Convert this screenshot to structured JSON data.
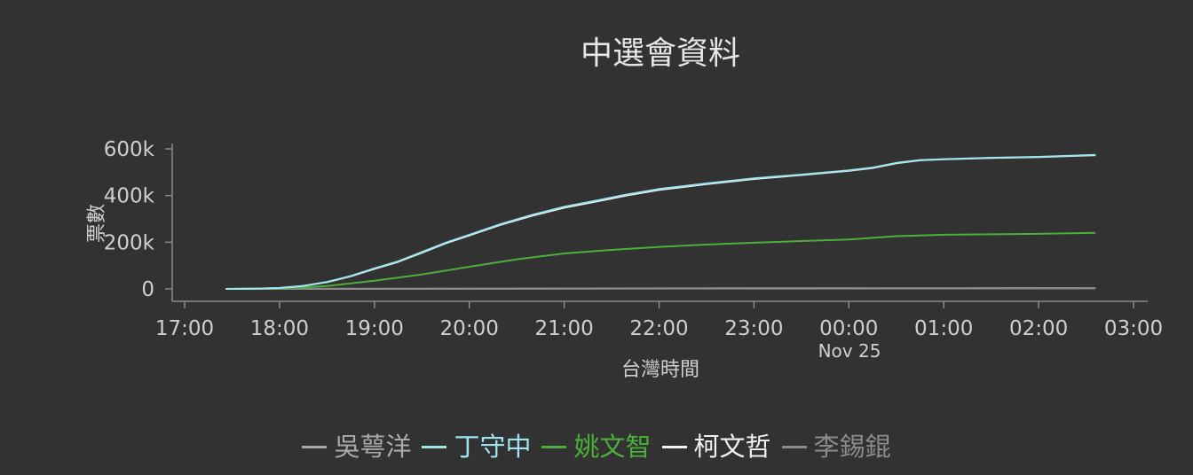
{
  "chart_data": {
    "type": "line",
    "title": "中選會資料",
    "xlabel": "台灣時間",
    "ylabel": "票數",
    "x_ticks": [
      "17:00",
      "18:00",
      "19:00",
      "20:00",
      "21:00",
      "22:00",
      "23:00",
      "00:00",
      "01:00",
      "02:00",
      "03:00"
    ],
    "x_date_label": "Nov 25",
    "y_ticks": [
      "0",
      "200k",
      "400k",
      "600k"
    ],
    "ylim": [
      0,
      620000
    ],
    "xlim": [
      "17:00",
      "03:00"
    ],
    "grid": false,
    "legend_position": "bottom",
    "series": [
      {
        "name": "吳萼洋",
        "color": "#aaaaaa",
        "points": [
          [
            "17:26",
            0
          ],
          [
            "19:00",
            500
          ],
          [
            "21:00",
            1500
          ],
          [
            "23:00",
            2500
          ],
          [
            "01:00",
            3200
          ],
          [
            "02:36",
            3500
          ]
        ]
      },
      {
        "name": "丁守中",
        "color": "#9ee4f0",
        "points": [
          [
            "17:26",
            0
          ],
          [
            "17:45",
            1000
          ],
          [
            "18:00",
            4000
          ],
          [
            "18:15",
            13000
          ],
          [
            "18:30",
            30000
          ],
          [
            "18:45",
            55000
          ],
          [
            "19:00",
            88000
          ],
          [
            "19:15",
            118000
          ],
          [
            "19:30",
            158000
          ],
          [
            "19:45",
            198000
          ],
          [
            "20:00",
            232000
          ],
          [
            "20:20",
            278000
          ],
          [
            "20:40",
            318000
          ],
          [
            "21:00",
            352000
          ],
          [
            "21:20",
            378000
          ],
          [
            "21:40",
            405000
          ],
          [
            "22:00",
            428000
          ],
          [
            "22:30",
            452000
          ],
          [
            "23:00",
            474000
          ],
          [
            "23:30",
            490000
          ],
          [
            "00:00",
            508000
          ],
          [
            "00:15",
            520000
          ],
          [
            "00:30",
            540000
          ],
          [
            "00:45",
            552000
          ],
          [
            "01:00",
            556000
          ],
          [
            "01:30",
            562000
          ],
          [
            "02:00",
            566000
          ],
          [
            "02:36",
            574000
          ]
        ]
      },
      {
        "name": "姚文智",
        "color": "#4caf3a",
        "points": [
          [
            "17:26",
            0
          ],
          [
            "18:00",
            1500
          ],
          [
            "18:30",
            12000
          ],
          [
            "19:00",
            35000
          ],
          [
            "19:30",
            62000
          ],
          [
            "20:00",
            95000
          ],
          [
            "20:30",
            127000
          ],
          [
            "21:00",
            152000
          ],
          [
            "21:30",
            167000
          ],
          [
            "22:00",
            180000
          ],
          [
            "22:30",
            190000
          ],
          [
            "23:00",
            198000
          ],
          [
            "23:30",
            205000
          ],
          [
            "00:00",
            212000
          ],
          [
            "00:30",
            226000
          ],
          [
            "01:00",
            232000
          ],
          [
            "01:30",
            234000
          ],
          [
            "02:00",
            236000
          ],
          [
            "02:36",
            240000
          ]
        ]
      },
      {
        "name": "柯文哲",
        "color": "#f2f2f2",
        "points": [
          [
            "17:26",
            0
          ],
          [
            "17:45",
            1000
          ],
          [
            "18:00",
            3800
          ],
          [
            "18:15",
            12500
          ],
          [
            "18:30",
            29000
          ],
          [
            "18:45",
            54000
          ],
          [
            "19:00",
            86000
          ],
          [
            "19:15",
            116000
          ],
          [
            "19:30",
            155000
          ],
          [
            "19:45",
            195000
          ],
          [
            "20:00",
            229000
          ],
          [
            "20:20",
            275000
          ],
          [
            "20:40",
            314000
          ],
          [
            "21:00",
            348000
          ],
          [
            "21:20",
            374000
          ],
          [
            "21:40",
            401000
          ],
          [
            "22:00",
            424000
          ],
          [
            "22:30",
            449000
          ],
          [
            "23:00",
            471000
          ],
          [
            "23:30",
            488000
          ],
          [
            "00:00",
            506000
          ],
          [
            "00:15",
            518000
          ],
          [
            "00:30",
            538000
          ],
          [
            "00:45",
            551000
          ],
          [
            "01:00",
            555000
          ],
          [
            "01:30",
            561000
          ],
          [
            "02:00",
            565000
          ],
          [
            "02:36",
            573000
          ]
        ]
      },
      {
        "name": "李錫錕",
        "color": "#8c8c8c",
        "points": [
          [
            "17:26",
            0
          ],
          [
            "19:00",
            300
          ],
          [
            "21:00",
            900
          ],
          [
            "23:00",
            1500
          ],
          [
            "01:00",
            2000
          ],
          [
            "02:36",
            2200
          ]
        ]
      }
    ]
  }
}
